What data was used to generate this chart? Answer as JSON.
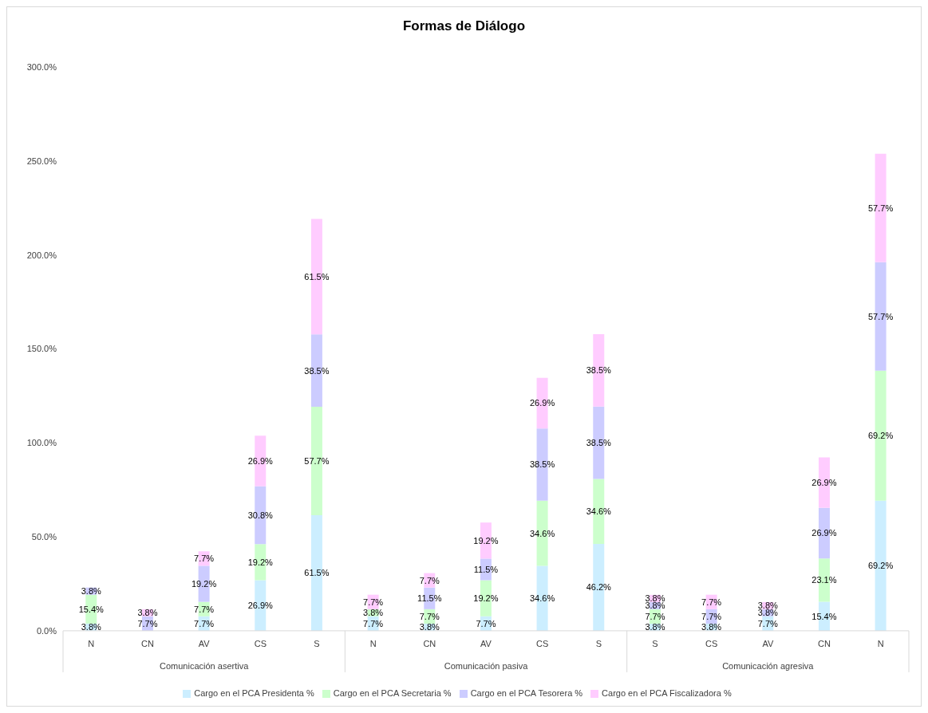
{
  "chart_data": {
    "type": "bar",
    "title": "Formas de Diálogo",
    "stacked": true,
    "categories": [
      "N",
      "CN",
      "AV",
      "CS",
      "S",
      "N",
      "CN",
      "AV",
      "CS",
      "S",
      "S",
      "CS",
      "AV",
      "CN",
      "N"
    ],
    "annotations": [
      "Comunicación asertiva",
      "Comunicación pasiva",
      "Comunicación agresiva"
    ],
    "series": [
      {
        "name": "Cargo en el PCA Presidenta %",
        "color": "#cceeff",
        "values": [
          3.8,
          null,
          7.7,
          26.9,
          61.5,
          7.7,
          3.8,
          7.7,
          34.6,
          46.2,
          3.8,
          3.8,
          7.7,
          15.4,
          69.2
        ],
        "value_labels": [
          "3.8%",
          null,
          "7.7%",
          "26.9%",
          "61.5%",
          "7.7%",
          "3.8%",
          "7.7%",
          "34.6%",
          "46.2%",
          "3.8%",
          "3.8%",
          "7.7%",
          "15.4%",
          "69.2%"
        ]
      },
      {
        "name": "Cargo en el PCA Secretaria %",
        "color": "#ccffcc",
        "values": [
          15.4,
          null,
          7.7,
          19.2,
          57.7,
          3.8,
          7.7,
          19.2,
          34.6,
          34.6,
          7.7,
          null,
          null,
          23.1,
          69.2
        ],
        "value_labels": [
          "15.4%",
          null,
          "7.7%",
          "19.2%",
          "57.7%",
          "3.8%",
          "7.7%",
          "19.2%",
          "34.6%",
          "34.6%",
          "7.7%",
          null,
          null,
          "23.1%",
          "69.2%"
        ]
      },
      {
        "name": "Cargo en el PCA Tesorera %",
        "color": "#ccccff",
        "values": [
          3.8,
          7.7,
          19.2,
          30.8,
          38.5,
          null,
          11.5,
          11.5,
          38.5,
          38.5,
          3.8,
          7.7,
          3.8,
          26.9,
          57.7
        ],
        "value_labels": [
          "3.8%",
          "7.7%",
          "19.2%",
          "30.8%",
          "38.5%",
          null,
          "11.5%",
          "11.5%",
          "38.5%",
          "38.5%",
          "3.8%",
          "7.7%",
          "3.8%",
          "26.9%",
          "57.7%"
        ]
      },
      {
        "name": "Cargo en el PCA Fiscalizadora %",
        "color": "#ffccff",
        "values": [
          null,
          3.8,
          7.7,
          26.9,
          61.5,
          7.7,
          7.7,
          19.2,
          26.9,
          38.5,
          3.8,
          7.7,
          3.8,
          26.9,
          57.7
        ],
        "value_labels": [
          null,
          "3.8%",
          "7.7%",
          "26.9%",
          "61.5%",
          "7.7%",
          "7.7%",
          "19.2%",
          "26.9%",
          "38.5%",
          "3.8%",
          "7.7%",
          "3.8%",
          "26.9%",
          "57.7%"
        ]
      }
    ],
    "ylim": [
      0,
      300
    ],
    "yticks": [
      {
        "value": 0,
        "label": "0.0%"
      },
      {
        "value": 50,
        "label": "50.0%"
      },
      {
        "value": 100,
        "label": "100.0%"
      },
      {
        "value": 150,
        "label": "150.0%"
      },
      {
        "value": 200,
        "label": "200.0%"
      },
      {
        "value": 250,
        "label": "250.0%"
      },
      {
        "value": 300,
        "label": "300.0%"
      }
    ],
    "grid": false,
    "legend": "bottom"
  }
}
